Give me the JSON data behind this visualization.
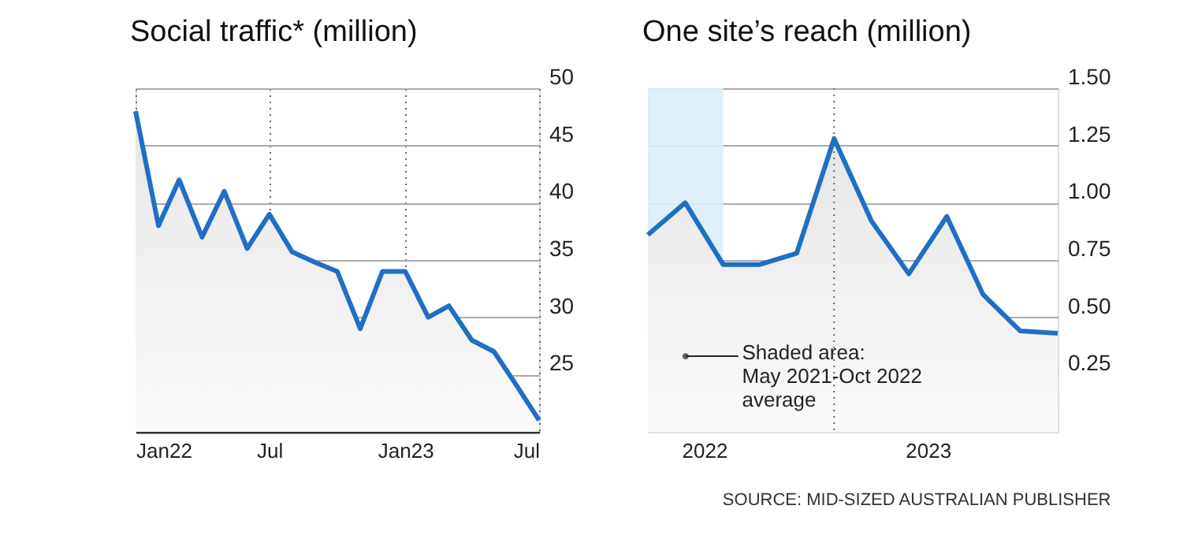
{
  "chart_data": [
    {
      "type": "area",
      "title": "Social traffic* (million)",
      "x": [
        "2022-01",
        "2022-02",
        "2022-03",
        "2022-04",
        "2022-05",
        "2022-06",
        "2022-07",
        "2022-08",
        "2022-09",
        "2022-10",
        "2022-11",
        "2022-12",
        "2023-01",
        "2023-02",
        "2023-03",
        "2023-04",
        "2023-05",
        "2023-06",
        "2023-07"
      ],
      "series": [
        {
          "color": "#1f6fc5",
          "values": [
            48,
            38,
            42,
            37,
            41,
            36,
            39,
            35.7,
            34.8,
            34,
            29,
            34,
            34,
            30,
            31,
            28,
            27,
            24,
            21
          ]
        }
      ],
      "xlim": [
        "2022-01",
        "2023-07"
      ],
      "xticks": [
        {
          "value": "2022-01",
          "label": "Jan22"
        },
        {
          "value": "2022-07",
          "label": "Jul"
        },
        {
          "value": "2023-01",
          "label": "Jan23"
        },
        {
          "value": "2023-07",
          "label": "Jul"
        }
      ],
      "ylim": [
        20,
        50
      ],
      "yticks": [
        25,
        30,
        35,
        40,
        45,
        50
      ],
      "grid": true
    },
    {
      "type": "area",
      "title": "One site’s reach (million)",
      "x": [
        "2021-10",
        "2021-12",
        "2022-02",
        "2022-04",
        "2022-06",
        "2022-08",
        "2022-10",
        "2022-12",
        "2023-02",
        "2023-04",
        "2023-06",
        "2023-08"
      ],
      "series": [
        {
          "color": "#1f6fc5",
          "values": [
            0.86,
            1.0,
            0.73,
            0.73,
            0.78,
            1.28,
            0.92,
            0.69,
            0.94,
            0.6,
            0.44,
            0.43
          ]
        }
      ],
      "xlim": [
        "2021-10",
        "2023-08"
      ],
      "xticks": [
        {
          "value": "2022-01",
          "label": "2022"
        },
        {
          "value": "2023-01",
          "label": "2023"
        }
      ],
      "ylim": [
        0,
        1.5
      ],
      "yticks": [
        {
          "value": 0.25,
          "label": "0.25"
        },
        {
          "value": 0.5,
          "label": "0.50"
        },
        {
          "value": 0.75,
          "label": "0.75"
        },
        {
          "value": 1,
          "label": "1.00"
        },
        {
          "value": 1.25,
          "label": "1.25"
        },
        {
          "value": 1.5,
          "label": "1.50"
        }
      ],
      "grid": "y",
      "ref_lines": [
        {
          "axis": "x",
          "value": "2022-08",
          "line_style": "dotted"
        }
      ],
      "bands": [
        {
          "axis": "x",
          "from": "2021-10",
          "to": "2022-02",
          "label": "Shaded area:\nMay 2021-Oct 2022\naverage",
          "color": "#dcedf8"
        }
      ],
      "annotations": [
        "SOURCE: MID-SIZED AUSTRALIAN PUBLISHER"
      ]
    }
  ]
}
